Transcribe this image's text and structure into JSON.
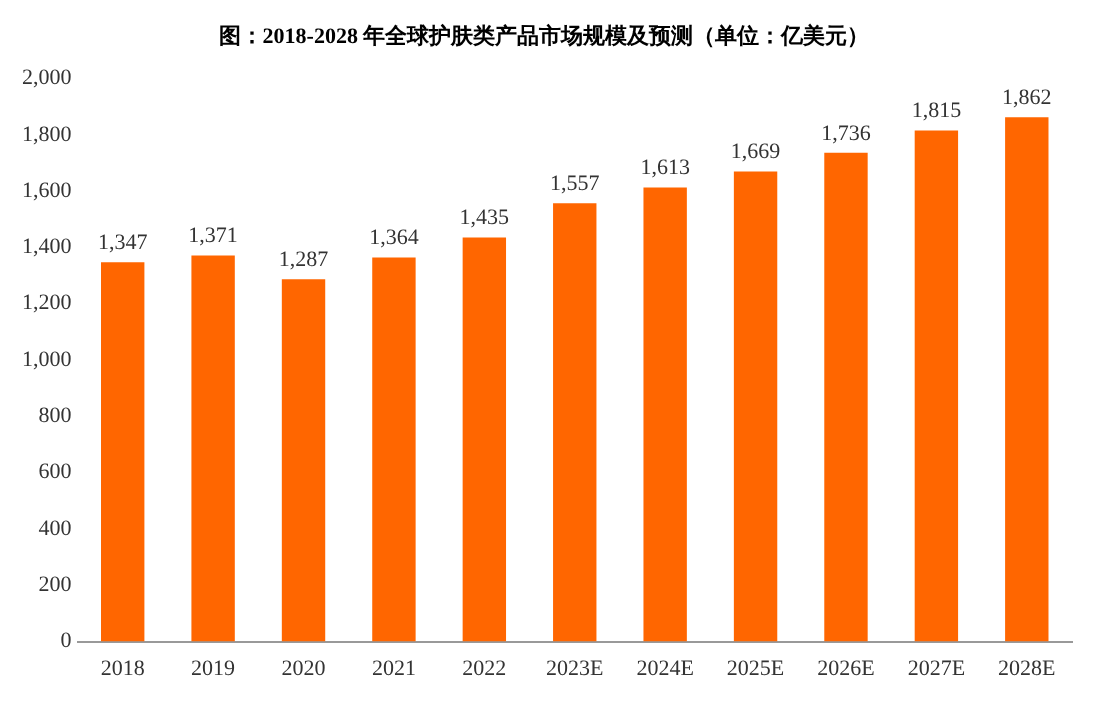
{
  "chart_data": {
    "type": "bar",
    "title": "图：2018-2028 年全球护肤类产品市场规模及预测（单位：亿美元）",
    "categories": [
      "2018",
      "2019",
      "2020",
      "2021",
      "2022",
      "2023E",
      "2024E",
      "2025E",
      "2026E",
      "2027E",
      "2028E"
    ],
    "values": [
      1347,
      1371,
      1287,
      1364,
      1435,
      1557,
      1613,
      1669,
      1736,
      1815,
      1862
    ],
    "value_labels": [
      "1,347",
      "1,371",
      "1,287",
      "1,364",
      "1,435",
      "1,557",
      "1,613",
      "1,669",
      "1,736",
      "1,815",
      "1,862"
    ],
    "color": "#ff6600",
    "ylim": [
      0,
      2000
    ],
    "yticks": [
      0,
      200,
      400,
      600,
      800,
      {
        "value": 1000,
        "label": "1,000"
      },
      {
        "value": 1200,
        "label": "1,200"
      },
      {
        "value": 1400,
        "label": "1,400"
      },
      {
        "value": 1600,
        "label": "1,600"
      },
      {
        "value": 1800,
        "label": "1,800"
      },
      {
        "value": 2000,
        "label": "2,000"
      }
    ],
    "grid": false,
    "legend": false
  }
}
